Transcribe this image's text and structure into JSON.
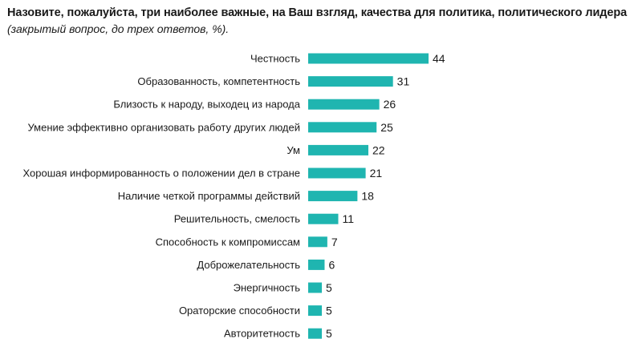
{
  "chart_data": {
    "type": "bar",
    "orientation": "horizontal",
    "title": "Назовите, пожалуйста, три наиболее важные, на Ваш взгляд, качества для политика, политического лидера",
    "subtitle": "(закрытый вопрос, до трех ответов, %).",
    "categories": [
      "Честность",
      "Образованность, компетентность",
      "Близость к народу, выходец из народа",
      "Умение эффективно организовать работу других людей",
      "Ум",
      "Хорошая информированность о положении дел в стране",
      "Наличие четкой программы действий",
      "Решительность, смелость",
      "Способность к компромиссам",
      "Доброжелательность",
      "Энергичность",
      "Ораторские способности",
      "Авторитетность"
    ],
    "values": [
      44,
      31,
      26,
      25,
      22,
      21,
      18,
      11,
      7,
      6,
      5,
      5,
      5
    ],
    "xlim": [
      0,
      44
    ],
    "bar_color": "#1fb5b0",
    "grid": false,
    "legend": "none",
    "data_labels": true
  }
}
